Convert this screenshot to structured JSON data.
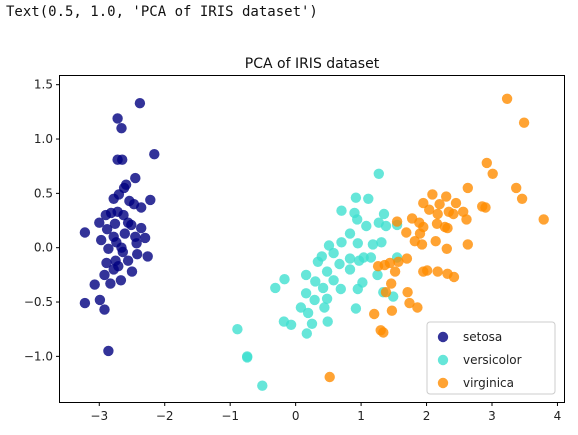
{
  "output_text": "Text(0.5, 1.0, 'PCA of IRIS dataset')",
  "chart_data": {
    "type": "scatter",
    "title": "PCA of IRIS dataset",
    "xlabel": "",
    "ylabel": "",
    "xlim": [
      -3.6,
      4.1
    ],
    "ylim": [
      -1.42,
      1.58
    ],
    "xticks": [
      -3,
      -2,
      -1,
      0,
      1,
      2,
      3,
      4
    ],
    "xtick_labels": [
      "−3",
      "−2",
      "−1",
      "0",
      "1",
      "2",
      "3",
      "4"
    ],
    "yticks": [
      -1.0,
      -0.5,
      0.0,
      0.5,
      1.0,
      1.5
    ],
    "ytick_labels": [
      "−1.0",
      "−0.5",
      "0.0",
      "0.5",
      "1.0",
      "1.5"
    ],
    "grid": false,
    "legend_position": "lower-right",
    "series": [
      {
        "name": "setosa",
        "color": "#000080",
        "points": [
          [
            -2.38,
            1.33
          ],
          [
            -2.72,
            1.19
          ],
          [
            -2.66,
            1.1
          ],
          [
            -2.16,
            0.86
          ],
          [
            -2.72,
            0.81
          ],
          [
            -2.65,
            0.81
          ],
          [
            -2.45,
            0.64
          ],
          [
            -2.59,
            0.58
          ],
          [
            -2.7,
            0.49
          ],
          [
            -2.62,
            0.55
          ],
          [
            -2.22,
            0.44
          ],
          [
            -2.78,
            0.45
          ],
          [
            -2.54,
            0.43
          ],
          [
            -2.47,
            0.4
          ],
          [
            -2.36,
            0.37
          ],
          [
            -2.82,
            0.32
          ],
          [
            -2.72,
            0.33
          ],
          [
            -2.9,
            0.3
          ],
          [
            -2.63,
            0.3
          ],
          [
            -2.56,
            0.23
          ],
          [
            -3.0,
            0.23
          ],
          [
            -2.76,
            0.22
          ],
          [
            -2.51,
            0.21
          ],
          [
            -2.36,
            0.18
          ],
          [
            -2.88,
            0.17
          ],
          [
            -2.61,
            0.13
          ],
          [
            -3.22,
            0.14
          ],
          [
            -2.78,
            0.1
          ],
          [
            -2.45,
            0.1
          ],
          [
            -2.3,
            0.09
          ],
          [
            -2.97,
            0.07
          ],
          [
            -2.74,
            0.05
          ],
          [
            -2.43,
            0.04
          ],
          [
            -2.66,
            0.0
          ],
          [
            -2.86,
            -0.01
          ],
          [
            -2.64,
            -0.04
          ],
          [
            -2.42,
            -0.06
          ],
          [
            -2.26,
            -0.08
          ],
          [
            -2.75,
            -0.12
          ],
          [
            -2.56,
            -0.12
          ],
          [
            -2.89,
            -0.14
          ],
          [
            -2.71,
            -0.17
          ],
          [
            -2.78,
            -0.2
          ],
          [
            -2.5,
            -0.22
          ],
          [
            -2.92,
            -0.25
          ],
          [
            -2.67,
            -0.3
          ],
          [
            -2.83,
            -0.33
          ],
          [
            -3.07,
            -0.34
          ],
          [
            -2.99,
            -0.48
          ],
          [
            -3.22,
            -0.51
          ],
          [
            -2.92,
            -0.57
          ],
          [
            -2.86,
            -0.95
          ]
        ]
      },
      {
        "name": "versicolor",
        "color": "#40e0d0",
        "points": [
          [
            1.27,
            0.68
          ],
          [
            0.92,
            0.46
          ],
          [
            1.11,
            0.45
          ],
          [
            0.7,
            0.34
          ],
          [
            0.9,
            0.32
          ],
          [
            1.35,
            0.31
          ],
          [
            0.94,
            0.26
          ],
          [
            1.27,
            0.23
          ],
          [
            1.38,
            0.2
          ],
          [
            1.08,
            0.2
          ],
          [
            0.83,
            0.13
          ],
          [
            1.55,
            0.21
          ],
          [
            0.7,
            0.05
          ],
          [
            0.95,
            0.04
          ],
          [
            0.51,
            0.02
          ],
          [
            1.31,
            0.05
          ],
          [
            1.18,
            0.03
          ],
          [
            0.4,
            -0.08
          ],
          [
            0.58,
            -0.05
          ],
          [
            0.83,
            -0.1
          ],
          [
            0.34,
            -0.13
          ],
          [
            1.04,
            -0.09
          ],
          [
            1.15,
            -0.09
          ],
          [
            0.67,
            -0.15
          ],
          [
            0.97,
            -0.12
          ],
          [
            1.55,
            -0.09
          ],
          [
            0.83,
            -0.2
          ],
          [
            0.48,
            -0.22
          ],
          [
            0.16,
            -0.25
          ],
          [
            1.25,
            -0.25
          ],
          [
            -0.17,
            -0.29
          ],
          [
            0.3,
            -0.31
          ],
          [
            0.58,
            -0.3
          ],
          [
            1.02,
            -0.32
          ],
          [
            0.42,
            -0.37
          ],
          [
            -0.31,
            -0.37
          ],
          [
            1.34,
            -0.41
          ],
          [
            0.69,
            -0.38
          ],
          [
            0.16,
            -0.42
          ],
          [
            0.29,
            -0.48
          ],
          [
            0.95,
            -0.38
          ],
          [
            0.08,
            -0.55
          ],
          [
            0.48,
            -0.47
          ],
          [
            0.44,
            -0.55
          ],
          [
            0.92,
            -0.56
          ],
          [
            1.49,
            -0.45
          ],
          [
            0.19,
            -0.6
          ],
          [
            -0.18,
            -0.68
          ],
          [
            -0.07,
            -0.71
          ],
          [
            0.25,
            -0.7
          ],
          [
            0.49,
            -0.68
          ],
          [
            -0.89,
            -0.75
          ],
          [
            0.17,
            -0.79
          ],
          [
            -0.74,
            -1.0
          ],
          [
            -0.74,
            -1.01
          ],
          [
            -0.51,
            -1.27
          ]
        ]
      },
      {
        "name": "virginica",
        "color": "#ff8c00",
        "points": [
          [
            3.23,
            1.37
          ],
          [
            3.49,
            1.15
          ],
          [
            2.92,
            0.78
          ],
          [
            3.01,
            0.68
          ],
          [
            2.63,
            0.55
          ],
          [
            3.37,
            0.55
          ],
          [
            3.46,
            0.45
          ],
          [
            2.09,
            0.49
          ],
          [
            2.3,
            0.47
          ],
          [
            2.45,
            0.41
          ],
          [
            1.95,
            0.41
          ],
          [
            2.2,
            0.4
          ],
          [
            2.9,
            0.37
          ],
          [
            2.85,
            0.38
          ],
          [
            2.04,
            0.35
          ],
          [
            2.34,
            0.33
          ],
          [
            2.56,
            0.33
          ],
          [
            2.17,
            0.31
          ],
          [
            2.41,
            0.31
          ],
          [
            2.61,
            0.26
          ],
          [
            1.78,
            0.27
          ],
          [
            3.79,
            0.26
          ],
          [
            1.55,
            0.24
          ],
          [
            1.89,
            0.23
          ],
          [
            2.16,
            0.22
          ],
          [
            2.28,
            0.19
          ],
          [
            1.95,
            0.19
          ],
          [
            1.69,
            0.14
          ],
          [
            1.9,
            0.13
          ],
          [
            2.32,
            0.18
          ],
          [
            1.82,
            0.06
          ],
          [
            2.14,
            0.06
          ],
          [
            1.93,
            0.03
          ],
          [
            2.63,
            0.03
          ],
          [
            2.31,
            -0.01
          ],
          [
            1.26,
            -0.17
          ],
          [
            1.7,
            -0.1
          ],
          [
            1.57,
            -0.13
          ],
          [
            1.44,
            -0.14
          ],
          [
            1.36,
            -0.16
          ],
          [
            1.52,
            -0.22
          ],
          [
            1.95,
            -0.22
          ],
          [
            2.01,
            -0.21
          ],
          [
            2.32,
            -0.24
          ],
          [
            2.17,
            -0.22
          ],
          [
            2.42,
            -0.27
          ],
          [
            1.46,
            -0.33
          ],
          [
            1.38,
            -0.41
          ],
          [
            1.71,
            -0.41
          ],
          [
            1.74,
            -0.51
          ],
          [
            1.86,
            -0.55
          ],
          [
            1.2,
            -0.61
          ],
          [
            1.47,
            -0.58
          ],
          [
            1.34,
            -0.78
          ],
          [
            1.3,
            -0.76
          ],
          [
            0.52,
            -1.19
          ]
        ]
      }
    ]
  }
}
